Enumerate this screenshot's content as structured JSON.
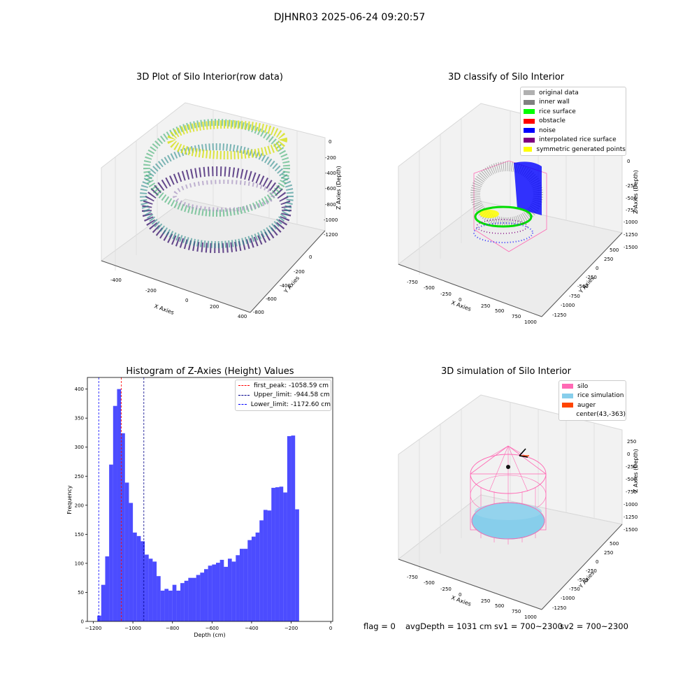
{
  "suptitle": "DJHNR03 2025-06-24 09:20:57",
  "panels": {
    "raw": {
      "title": "3D Plot of Silo Interior(row data)",
      "xlabel": "X Axies",
      "ylabel": "Y Axies",
      "zlabel": "Z Axies (Depth)",
      "xticks": [
        "-400",
        "-200",
        "0",
        "200",
        "400"
      ],
      "yticks": [
        "0",
        "-200",
        "-400",
        "-600",
        "-800"
      ],
      "zticks": [
        "0",
        "-200",
        "-400",
        "-600",
        "-800",
        "-1000",
        "-1200"
      ]
    },
    "classify": {
      "title": "3D classify of Silo Interior",
      "xlabel": "X Axies",
      "ylabel": "Y Axies",
      "zlabel": "Z Axies (Depth)",
      "xticks": [
        "-750",
        "-500",
        "-250",
        "0",
        "250",
        "500",
        "750",
        "1000"
      ],
      "yticks": [
        "500",
        "250",
        "0",
        "-250",
        "-500",
        "-750",
        "-1000",
        "-1250"
      ],
      "zticks": [
        "0",
        "-250",
        "-500",
        "-750",
        "-1000",
        "-1250",
        "-1500"
      ],
      "legend": [
        {
          "label": "original data",
          "color": "#b0b0b0"
        },
        {
          "label": "inner wall",
          "color": "#808080"
        },
        {
          "label": "rice surface",
          "color": "#00ff00"
        },
        {
          "label": "obstacle",
          "color": "#ff0000"
        },
        {
          "label": "noise",
          "color": "#0000ff"
        },
        {
          "label": "interpolated rice surface",
          "color": "#800080"
        },
        {
          "label": "symmetric generated points",
          "color": "#ffff00"
        }
      ]
    },
    "simulation": {
      "title": "3D simulation of Silo Interior",
      "xlabel": "X Axies",
      "ylabel": "Y Axies",
      "zlabel": "Z Axies (Depth)",
      "xticks": [
        "-750",
        "-500",
        "-250",
        "0",
        "250",
        "500",
        "750",
        "1000"
      ],
      "yticks": [
        "500",
        "250",
        "0",
        "-250",
        "-500",
        "-750",
        "-1000",
        "-1250"
      ],
      "zticks": [
        "250",
        "0",
        "-250",
        "-500",
        "-750",
        "-1000",
        "-1250",
        "-1500"
      ],
      "legend": [
        {
          "label": "silo",
          "color": "#ff69b4"
        },
        {
          "label": "rice simulation",
          "color": "#87ceeb"
        },
        {
          "label": "auger",
          "color": "#ff4500"
        },
        {
          "label": "center(43,-363)",
          "color": ""
        }
      ]
    }
  },
  "footer": {
    "flag": "flag = 0",
    "avg": "avgDepth = 1031 cm",
    "sv1": "sv1 = 700~2300",
    "sv2": "sv2 = 700~2300"
  },
  "chart_data": {
    "type": "bar",
    "title": "Histogram of Z-Axies (Height) Values",
    "xlabel": "Depth (cm)",
    "ylabel": "Frequency",
    "xlim": [
      -1230,
      10
    ],
    "ylim": [
      0,
      420
    ],
    "xticks": [
      -1200,
      -1000,
      -800,
      -600,
      -400,
      -200,
      0
    ],
    "yticks": [
      0,
      50,
      100,
      150,
      200,
      250,
      300,
      350,
      400
    ],
    "bar_color": "#0000ff",
    "bin_start": -1180,
    "bin_width": 20,
    "values": [
      10,
      63,
      112,
      270,
      371,
      400,
      324,
      239,
      204,
      153,
      147,
      138,
      115,
      108,
      103,
      78,
      53,
      56,
      53,
      63,
      53,
      66,
      70,
      75,
      75,
      80,
      84,
      90,
      96,
      98,
      101,
      106,
      94,
      108,
      103,
      114,
      125,
      125,
      140,
      146,
      153,
      174,
      192,
      191,
      230,
      231,
      232,
      222,
      319,
      320,
      193
    ],
    "lines": [
      {
        "label": "first_peak: -1058.59 cm",
        "x": -1058.59,
        "color": "#ff0000"
      },
      {
        "label": "Upper_limit: -944.58 cm",
        "x": -944.58,
        "color": "#00008b"
      },
      {
        "label": "Lower_limit: -1172.60 cm",
        "x": -1172.6,
        "color": "#0000ff"
      }
    ],
    "legend_position": "upper right"
  }
}
